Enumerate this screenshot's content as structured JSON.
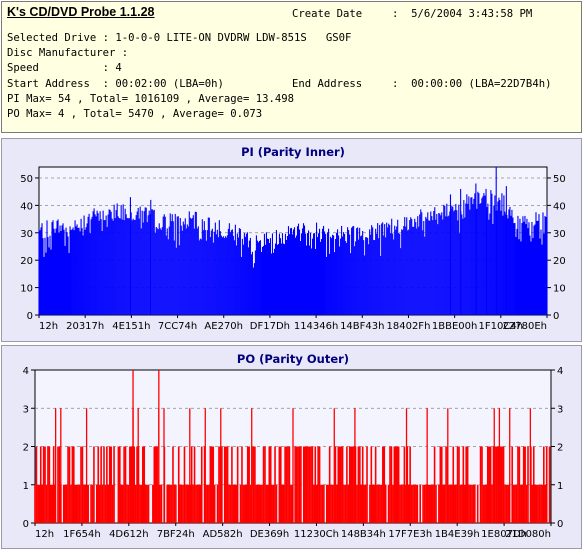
{
  "app_title": "K's CD/DVD Probe 1.1.28",
  "info": {
    "create_date_label": "Create Date",
    "create_date_value": ":  5/6/2004 3:43:58 PM",
    "selected_drive": "Selected Drive : 1-0-0-0 LITE-ON DVDRW LDW-851S   GS0F",
    "disc_manufacturer": "Disc Manufacturer :",
    "speed": "Speed          : 4",
    "start_address": "Start Address  : 00:02:00 (LBA=0h)",
    "end_address_label": "End Address",
    "end_address_value": ":  00:00:00 (LBA=22D7B4h)",
    "pi_summary": "PI Max= 54 , Total= 1016109 , Average= 13.498",
    "po_summary": "PO Max= 4 , Total= 5470 , Average= 0.073"
  },
  "colors": {
    "pi_bar": "#0000ff",
    "po_bar": "#ff0000",
    "panel_bg": "#e8e8f8",
    "plot_bg": "#f4f4ff",
    "title_text": "#000080",
    "info_bg": "#ffffe1"
  },
  "chart_data": [
    {
      "type": "bar",
      "title": "PI (Parity Inner)",
      "ylim": [
        0,
        54
      ],
      "yticks": [
        0,
        10,
        20,
        30,
        40,
        50
      ],
      "grid": true,
      "xtick_labels": [
        "12h",
        "20317h",
        "4E151h",
        "7CC74h",
        "AE270h",
        "DF17Dh",
        "114346h",
        "14BF43h",
        "18402Fh",
        "1BBE00h",
        "1F10C4h",
        "22780Eh"
      ],
      "max": 54,
      "envelope": [
        {
          "x": 0.0,
          "y": 30
        },
        {
          "x": 0.03,
          "y": 32
        },
        {
          "x": 0.06,
          "y": 31
        },
        {
          "x": 0.1,
          "y": 35
        },
        {
          "x": 0.15,
          "y": 38
        },
        {
          "x": 0.2,
          "y": 37
        },
        {
          "x": 0.25,
          "y": 33
        },
        {
          "x": 0.3,
          "y": 34
        },
        {
          "x": 0.35,
          "y": 32
        },
        {
          "x": 0.4,
          "y": 28
        },
        {
          "x": 0.43,
          "y": 25
        },
        {
          "x": 0.45,
          "y": 27
        },
        {
          "x": 0.48,
          "y": 29
        },
        {
          "x": 0.52,
          "y": 30
        },
        {
          "x": 0.56,
          "y": 30
        },
        {
          "x": 0.6,
          "y": 29
        },
        {
          "x": 0.64,
          "y": 29
        },
        {
          "x": 0.68,
          "y": 31
        },
        {
          "x": 0.72,
          "y": 33
        },
        {
          "x": 0.76,
          "y": 35
        },
        {
          "x": 0.8,
          "y": 38
        },
        {
          "x": 0.84,
          "y": 40
        },
        {
          "x": 0.88,
          "y": 42
        },
        {
          "x": 0.91,
          "y": 41
        },
        {
          "x": 0.94,
          "y": 34
        },
        {
          "x": 0.97,
          "y": 33
        },
        {
          "x": 1.0,
          "y": 36
        }
      ],
      "spikes": [
        {
          "x": 0.18,
          "y": 43
        },
        {
          "x": 0.22,
          "y": 42
        },
        {
          "x": 0.81,
          "y": 44
        },
        {
          "x": 0.83,
          "y": 46
        },
        {
          "x": 0.86,
          "y": 48
        },
        {
          "x": 0.88,
          "y": 46
        },
        {
          "x": 0.9,
          "y": 54
        },
        {
          "x": 0.92,
          "y": 47
        }
      ]
    },
    {
      "type": "bar",
      "title": "PO (Parity Outer)",
      "ylim": [
        0,
        4
      ],
      "yticks": [
        0,
        1,
        2,
        3,
        4
      ],
      "grid": true,
      "xtick_labels": [
        "12h",
        "1F654h",
        "4D612h",
        "7BF24h",
        "AD582h",
        "DE369h",
        "11230Ch",
        "148B34h",
        "17F7E3h",
        "1B4E39h",
        "1E807Dh",
        "21D080h"
      ],
      "max": 4,
      "peaks_4": [
        0.19,
        0.24
      ],
      "peaks_3": [
        0.04,
        0.05,
        0.1,
        0.19,
        0.2,
        0.24,
        0.25,
        0.3,
        0.33,
        0.36,
        0.42,
        0.5,
        0.58,
        0.62,
        0.72,
        0.76,
        0.8,
        0.89,
        0.9,
        0.92,
        0.96
      ]
    }
  ]
}
